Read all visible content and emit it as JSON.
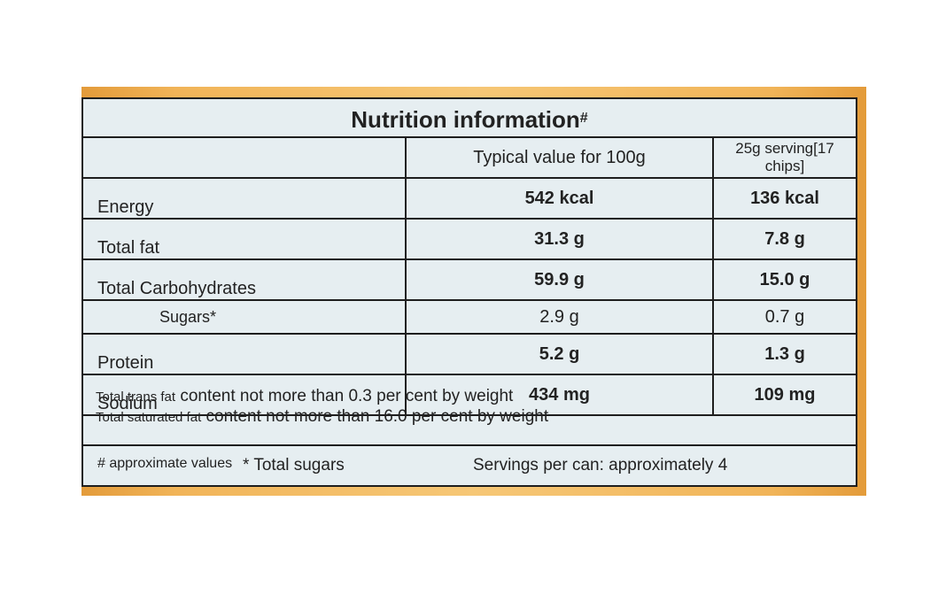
{
  "title": "Nutrition information",
  "title_mark": "#",
  "columns": [
    "",
    "Typical value for 100g",
    "25g serving[17 chips]"
  ],
  "rows": [
    {
      "label": "Energy",
      "per100g": "542 kcal",
      "serving": "136 kcal",
      "bold": true,
      "indent": false
    },
    {
      "label": "Total fat",
      "per100g": "31.3 g",
      "serving": "7.8 g",
      "bold": true,
      "indent": false
    },
    {
      "label": "Total Carbohydrates",
      "per100g": "59.9 g",
      "serving": "15.0 g",
      "bold": true,
      "indent": false
    },
    {
      "label": "Sugars*",
      "per100g": "2.9 g",
      "serving": "0.7 g",
      "bold": false,
      "indent": true
    },
    {
      "label": "Protein",
      "per100g": "5.2 g",
      "serving": "1.3 g",
      "bold": true,
      "indent": false
    },
    {
      "label": "Sodium",
      "per100g": "434 mg",
      "serving": "109 mg",
      "bold": true,
      "indent": false
    }
  ],
  "notes": {
    "line1_prefix": "Total trans fat",
    "line1_rest": " content not more than 0.3 per cent by weight",
    "line2_prefix": "Total saturated fat",
    "line2_rest": " content not more than 16.0 per cent by weight"
  },
  "footer": {
    "approx": "# approximate values",
    "sugars": "* Total sugars",
    "servings": "Servings per can: approximately 4"
  }
}
